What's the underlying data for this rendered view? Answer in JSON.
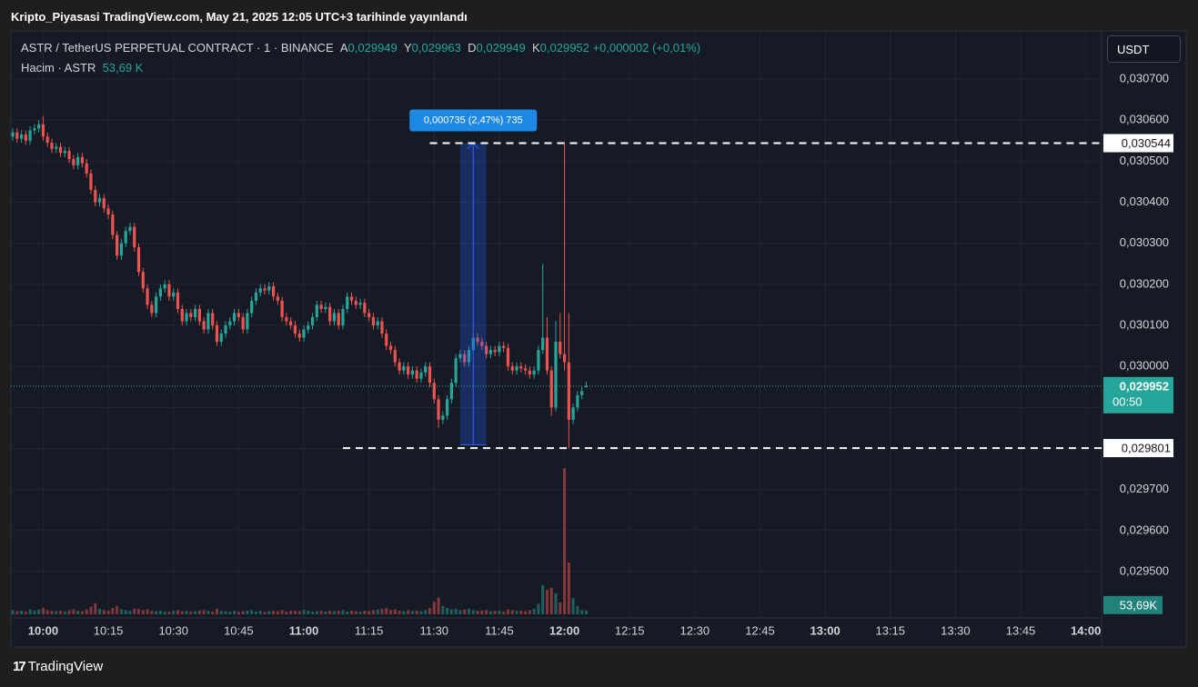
{
  "page": {
    "title": "Kripto_Piyasasi TradingView.com, May 21, 2025 12:05 UTC+3 tarihinde yayınlandı",
    "currency_button": "USDT",
    "brand": "TradingView"
  },
  "chart_data": {
    "type": "candlestick",
    "symbol": "ASTR / TetherUS PERPETUAL CONTRACT · 1 · BINANCE",
    "ohlc_legend": [
      {
        "key": "A",
        "value": 0.029949,
        "label": "0,029949"
      },
      {
        "key": "Y",
        "value": 0.029963,
        "label": "0,029963"
      },
      {
        "key": "D",
        "value": 0.029949,
        "label": "0,029949"
      },
      {
        "key": "K",
        "value": 0.029952,
        "label": "0,029952"
      }
    ],
    "change": "+0,000002 (+0,01%)",
    "volume_legend": {
      "name": "Hacim · ASTR",
      "value": 53690,
      "label": "53,69 K"
    },
    "x": [
      "09:53",
      "09:54",
      "09:55",
      "09:56",
      "09:57",
      "09:58",
      "09:59",
      "10:00",
      "10:01",
      "10:02",
      "10:03",
      "10:04",
      "10:05",
      "10:06",
      "10:07",
      "10:08",
      "10:09",
      "10:10",
      "10:11",
      "10:12",
      "10:13",
      "10:14",
      "10:15",
      "10:16",
      "10:17",
      "10:18",
      "10:19",
      "10:20",
      "10:21",
      "10:22",
      "10:23",
      "10:24",
      "10:25",
      "10:26",
      "10:27",
      "10:28",
      "10:29",
      "10:30",
      "10:31",
      "10:32",
      "10:33",
      "10:34",
      "10:35",
      "10:36",
      "10:37",
      "10:38",
      "10:39",
      "10:40",
      "10:41",
      "10:42",
      "10:43",
      "10:44",
      "10:45",
      "10:46",
      "10:47",
      "10:48",
      "10:49",
      "10:50",
      "10:51",
      "10:52",
      "10:53",
      "10:54",
      "10:55",
      "10:56",
      "10:57",
      "10:58",
      "10:59",
      "11:00",
      "11:01",
      "11:02",
      "11:03",
      "11:04",
      "11:05",
      "11:06",
      "11:07",
      "11:08",
      "11:09",
      "11:10",
      "11:11",
      "11:12",
      "11:13",
      "11:14",
      "11:15",
      "11:16",
      "11:17",
      "11:18",
      "11:19",
      "11:20",
      "11:21",
      "11:22",
      "11:23",
      "11:24",
      "11:25",
      "11:26",
      "11:27",
      "11:28",
      "11:29",
      "11:30",
      "11:31",
      "11:32",
      "11:33",
      "11:34",
      "11:35",
      "11:36",
      "11:37",
      "11:38",
      "11:39",
      "11:40",
      "11:41",
      "11:42",
      "11:43",
      "11:44",
      "11:45",
      "11:46",
      "11:47",
      "11:48",
      "11:49",
      "11:50",
      "11:51",
      "11:52",
      "11:53",
      "11:54",
      "11:55",
      "11:56",
      "11:57",
      "11:58",
      "11:59",
      "12:00",
      "12:01",
      "12:02",
      "12:03",
      "12:04",
      "12:05"
    ],
    "open": [
      0.03056,
      0.03057,
      0.030555,
      0.030565,
      0.03055,
      0.030575,
      0.03058,
      0.03059,
      0.03056,
      0.030545,
      0.03053,
      0.030535,
      0.03052,
      0.030525,
      0.030505,
      0.03049,
      0.03051,
      0.030495,
      0.03047,
      0.03043,
      0.0304,
      0.03041,
      0.030385,
      0.03037,
      0.03032,
      0.03027,
      0.0303,
      0.03033,
      0.03034,
      0.03029,
      0.03023,
      0.03019,
      0.03015,
      0.03013,
      0.03017,
      0.03019,
      0.0302,
      0.03017,
      0.03018,
      0.03014,
      0.03011,
      0.03013,
      0.03012,
      0.03014,
      0.03011,
      0.03009,
      0.03013,
      0.0301,
      0.03006,
      0.03008,
      0.0301,
      0.03011,
      0.03013,
      0.03012,
      0.03009,
      0.03013,
      0.03016,
      0.03018,
      0.03019,
      0.030185,
      0.030195,
      0.03017,
      0.03016,
      0.03012,
      0.03011,
      0.0301,
      0.03008,
      0.03007,
      0.03009,
      0.0301,
      0.03012,
      0.03015,
      0.03014,
      0.030145,
      0.03011,
      0.03013,
      0.0301,
      0.03014,
      0.03017,
      0.03016,
      0.03015,
      0.030155,
      0.03013,
      0.03012,
      0.0301,
      0.03011,
      0.03008,
      0.03005,
      0.03004,
      0.03001,
      0.02999,
      0.03,
      0.02998,
      0.02999,
      0.02997,
      0.029985,
      0.03,
      0.02996,
      0.02992,
      0.02987,
      0.02988,
      0.02992,
      0.02996,
      0.03002,
      0.03003,
      0.03001,
      0.03004,
      0.03007,
      0.03006,
      0.03005,
      0.03003,
      0.03004,
      0.030035,
      0.03005,
      0.030045,
      0.03,
      0.02999,
      0.03,
      0.029995,
      0.02999,
      0.02998,
      0.02999,
      0.03004,
      0.03007,
      0.02999,
      0.0299,
      0.03006,
      0.03003,
      0.03001,
      0.02987,
      0.0299,
      0.02993,
      0.029949
    ],
    "high": [
      0.03058,
      0.03058,
      0.030575,
      0.030575,
      0.030585,
      0.03059,
      0.0306,
      0.03061,
      0.03057,
      0.030555,
      0.030545,
      0.030545,
      0.030535,
      0.030535,
      0.030515,
      0.03052,
      0.03052,
      0.030505,
      0.03048,
      0.03044,
      0.03042,
      0.03042,
      0.030395,
      0.03038,
      0.03033,
      0.03031,
      0.03034,
      0.03035,
      0.03035,
      0.0303,
      0.03024,
      0.0302,
      0.03016,
      0.03018,
      0.0302,
      0.03021,
      0.03021,
      0.03019,
      0.03019,
      0.03015,
      0.03014,
      0.03014,
      0.03015,
      0.03015,
      0.03012,
      0.03014,
      0.03014,
      0.03011,
      0.03009,
      0.03011,
      0.03012,
      0.03014,
      0.03014,
      0.03013,
      0.03014,
      0.03017,
      0.03019,
      0.0302,
      0.0302,
      0.030205,
      0.030205,
      0.03018,
      0.03017,
      0.03013,
      0.03012,
      0.03011,
      0.03009,
      0.0301,
      0.03011,
      0.03013,
      0.03016,
      0.03016,
      0.030155,
      0.030155,
      0.03014,
      0.03014,
      0.03015,
      0.03018,
      0.03018,
      0.03017,
      0.030165,
      0.030165,
      0.03014,
      0.03013,
      0.03012,
      0.03012,
      0.03009,
      0.03006,
      0.03005,
      0.03002,
      0.03001,
      0.03001,
      0.03,
      0.03,
      0.029995,
      0.03001,
      0.03001,
      0.02997,
      0.02993,
      0.02989,
      0.02993,
      0.02997,
      0.03003,
      0.03004,
      0.03004,
      0.03005,
      0.03008,
      0.03008,
      0.03007,
      0.03006,
      0.03005,
      0.03005,
      0.03006,
      0.03006,
      0.030055,
      0.03001,
      0.03001,
      0.03001,
      0.030005,
      0.03,
      0.03,
      0.03005,
      0.03025,
      0.03012,
      0.03,
      0.03011,
      0.03013,
      0.030544,
      0.03013,
      0.02991,
      0.02994,
      0.02995,
      0.029963
    ],
    "low": [
      0.03055,
      0.030545,
      0.030545,
      0.03054,
      0.03054,
      0.030565,
      0.03057,
      0.03055,
      0.030535,
      0.03052,
      0.03052,
      0.03051,
      0.03051,
      0.030495,
      0.03048,
      0.03048,
      0.030485,
      0.03046,
      0.03042,
      0.03039,
      0.03039,
      0.030375,
      0.03036,
      0.03031,
      0.03026,
      0.03026,
      0.03029,
      0.03032,
      0.03028,
      0.03022,
      0.03018,
      0.03014,
      0.03012,
      0.03012,
      0.03016,
      0.03018,
      0.03016,
      0.03016,
      0.03013,
      0.0301,
      0.0301,
      0.03011,
      0.03011,
      0.0301,
      0.03008,
      0.03008,
      0.03009,
      0.03005,
      0.03005,
      0.03007,
      0.03009,
      0.0301,
      0.03011,
      0.03008,
      0.03008,
      0.03012,
      0.03015,
      0.03017,
      0.030175,
      0.030175,
      0.03016,
      0.03015,
      0.03011,
      0.0301,
      0.03009,
      0.03007,
      0.03006,
      0.03006,
      0.03008,
      0.03009,
      0.03011,
      0.03013,
      0.03013,
      0.0301,
      0.0301,
      0.03009,
      0.03009,
      0.03013,
      0.03015,
      0.03014,
      0.03014,
      0.03012,
      0.03011,
      0.03009,
      0.03009,
      0.03007,
      0.03004,
      0.03003,
      0.03,
      0.02998,
      0.02998,
      0.02997,
      0.02997,
      0.02996,
      0.02996,
      0.029975,
      0.02995,
      0.02991,
      0.02985,
      0.02986,
      0.02987,
      0.02991,
      0.02995,
      0.03001,
      0.03,
      0.03,
      0.03003,
      0.03005,
      0.03004,
      0.03002,
      0.03002,
      0.030025,
      0.030025,
      0.030035,
      0.02999,
      0.02998,
      0.02998,
      0.029985,
      0.02998,
      0.02997,
      0.02997,
      0.02998,
      0.03003,
      0.02998,
      0.02988,
      0.02989,
      0.03002,
      0.02999,
      0.029801,
      0.02986,
      0.02989,
      0.02992,
      0.029949
    ],
    "close": [
      0.03057,
      0.030555,
      0.030565,
      0.03055,
      0.030575,
      0.03058,
      0.03059,
      0.03056,
      0.030545,
      0.03053,
      0.030535,
      0.03052,
      0.030525,
      0.030505,
      0.03049,
      0.03051,
      0.030495,
      0.03047,
      0.03043,
      0.0304,
      0.03041,
      0.030385,
      0.03037,
      0.03032,
      0.03027,
      0.0303,
      0.03033,
      0.03034,
      0.03029,
      0.03023,
      0.03019,
      0.03015,
      0.03013,
      0.03017,
      0.03019,
      0.0302,
      0.03017,
      0.03018,
      0.03014,
      0.03011,
      0.03013,
      0.03012,
      0.03014,
      0.03011,
      0.03009,
      0.03013,
      0.0301,
      0.03006,
      0.03008,
      0.0301,
      0.03011,
      0.03013,
      0.03012,
      0.03009,
      0.03013,
      0.03016,
      0.03018,
      0.03019,
      0.030185,
      0.030195,
      0.03017,
      0.03016,
      0.03012,
      0.03011,
      0.0301,
      0.03008,
      0.03007,
      0.03009,
      0.0301,
      0.03012,
      0.03015,
      0.03014,
      0.030145,
      0.03011,
      0.03013,
      0.0301,
      0.03014,
      0.03017,
      0.03016,
      0.03015,
      0.030155,
      0.03013,
      0.03012,
      0.0301,
      0.03011,
      0.03008,
      0.03005,
      0.03004,
      0.03001,
      0.02999,
      0.03,
      0.02998,
      0.02999,
      0.02997,
      0.029985,
      0.03,
      0.02996,
      0.02992,
      0.02987,
      0.02988,
      0.02992,
      0.02996,
      0.03002,
      0.03003,
      0.03001,
      0.03004,
      0.03007,
      0.03006,
      0.03005,
      0.03003,
      0.03004,
      0.030035,
      0.03005,
      0.030045,
      0.03,
      0.02999,
      0.03,
      0.029995,
      0.02999,
      0.02998,
      0.02999,
      0.03004,
      0.03007,
      0.02999,
      0.0299,
      0.03006,
      0.03003,
      0.03001,
      0.02987,
      0.0299,
      0.02993,
      0.02994,
      0.029952
    ],
    "volume": [
      60000,
      45000,
      52000,
      40000,
      70000,
      55000,
      65000,
      90000,
      60000,
      50000,
      45000,
      55000,
      40000,
      60000,
      70000,
      50000,
      45000,
      70000,
      110000,
      160000,
      80000,
      60000,
      50000,
      90000,
      120000,
      70000,
      60000,
      50000,
      80000,
      75000,
      60000,
      70000,
      50000,
      45000,
      55000,
      40000,
      35000,
      50000,
      60000,
      45000,
      50000,
      40000,
      45000,
      55000,
      60000,
      50000,
      40000,
      80000,
      50000,
      45000,
      40000,
      50000,
      35000,
      45000,
      55000,
      60000,
      40000,
      50000,
      35000,
      45000,
      50000,
      45000,
      60000,
      40000,
      55000,
      50000,
      45000,
      60000,
      50000,
      40000,
      45000,
      50000,
      40000,
      55000,
      45000,
      50000,
      60000,
      40000,
      50000,
      45000,
      40000,
      50000,
      45000,
      60000,
      70000,
      80000,
      90000,
      60000,
      70000,
      50000,
      45000,
      60000,
      50000,
      55000,
      45000,
      60000,
      90000,
      180000,
      240000,
      120000,
      90000,
      70000,
      80000,
      60000,
      70000,
      80000,
      60000,
      50000,
      55000,
      60000,
      45000,
      50000,
      55000,
      40000,
      70000,
      60000,
      50000,
      55000,
      45000,
      60000,
      80000,
      150000,
      420000,
      350000,
      380000,
      300000,
      170000,
      2090000,
      740000,
      230000,
      120000,
      60000,
      53690
    ],
    "xlim": [
      "09:53",
      "14:03"
    ],
    "xticks": [
      "10:00",
      "10:15",
      "10:30",
      "10:45",
      "11:00",
      "11:15",
      "11:30",
      "11:45",
      "12:00",
      "12:15",
      "12:30",
      "12:45",
      "13:00",
      "13:15",
      "13:30",
      "13:45",
      "14:00"
    ],
    "ylim": [
      0.029396,
      0.030813
    ],
    "yticks": [
      {
        "value": 0.0307,
        "label": "0,030700"
      },
      {
        "value": 0.0306,
        "label": "0,030600"
      },
      {
        "value": 0.0305,
        "label": "0,030500"
      },
      {
        "value": 0.0304,
        "label": "0,030400"
      },
      {
        "value": 0.0303,
        "label": "0,030300"
      },
      {
        "value": 0.0302,
        "label": "0,030200"
      },
      {
        "value": 0.0301,
        "label": "0,030100"
      },
      {
        "value": 0.03,
        "label": "0,030000"
      },
      {
        "value": 0.0299,
        "label": "0,029900"
      },
      {
        "value": 0.0298,
        "label": "0,029800"
      },
      {
        "value": 0.0297,
        "label": "0,029700"
      },
      {
        "value": 0.0296,
        "label": "0,029600"
      },
      {
        "value": 0.0295,
        "label": "0,029500"
      }
    ],
    "vlim": [
      0,
      2600000
    ],
    "grid": true,
    "up_color": "#26a69a",
    "down_color": "#ef5350",
    "last_price": {
      "value": 0.029952,
      "label": "0,029952",
      "countdown": "00:50"
    },
    "last_volume": {
      "value": 53690,
      "label": "53,69K"
    },
    "price_lines": [
      {
        "value": 0.030544,
        "label": "0,030544"
      },
      {
        "value": 0.029801,
        "label": "0,029801"
      }
    ],
    "measure": {
      "from": 0.029809,
      "to": 0.030544,
      "label": "0,000735 (2,47%) 735"
    }
  }
}
